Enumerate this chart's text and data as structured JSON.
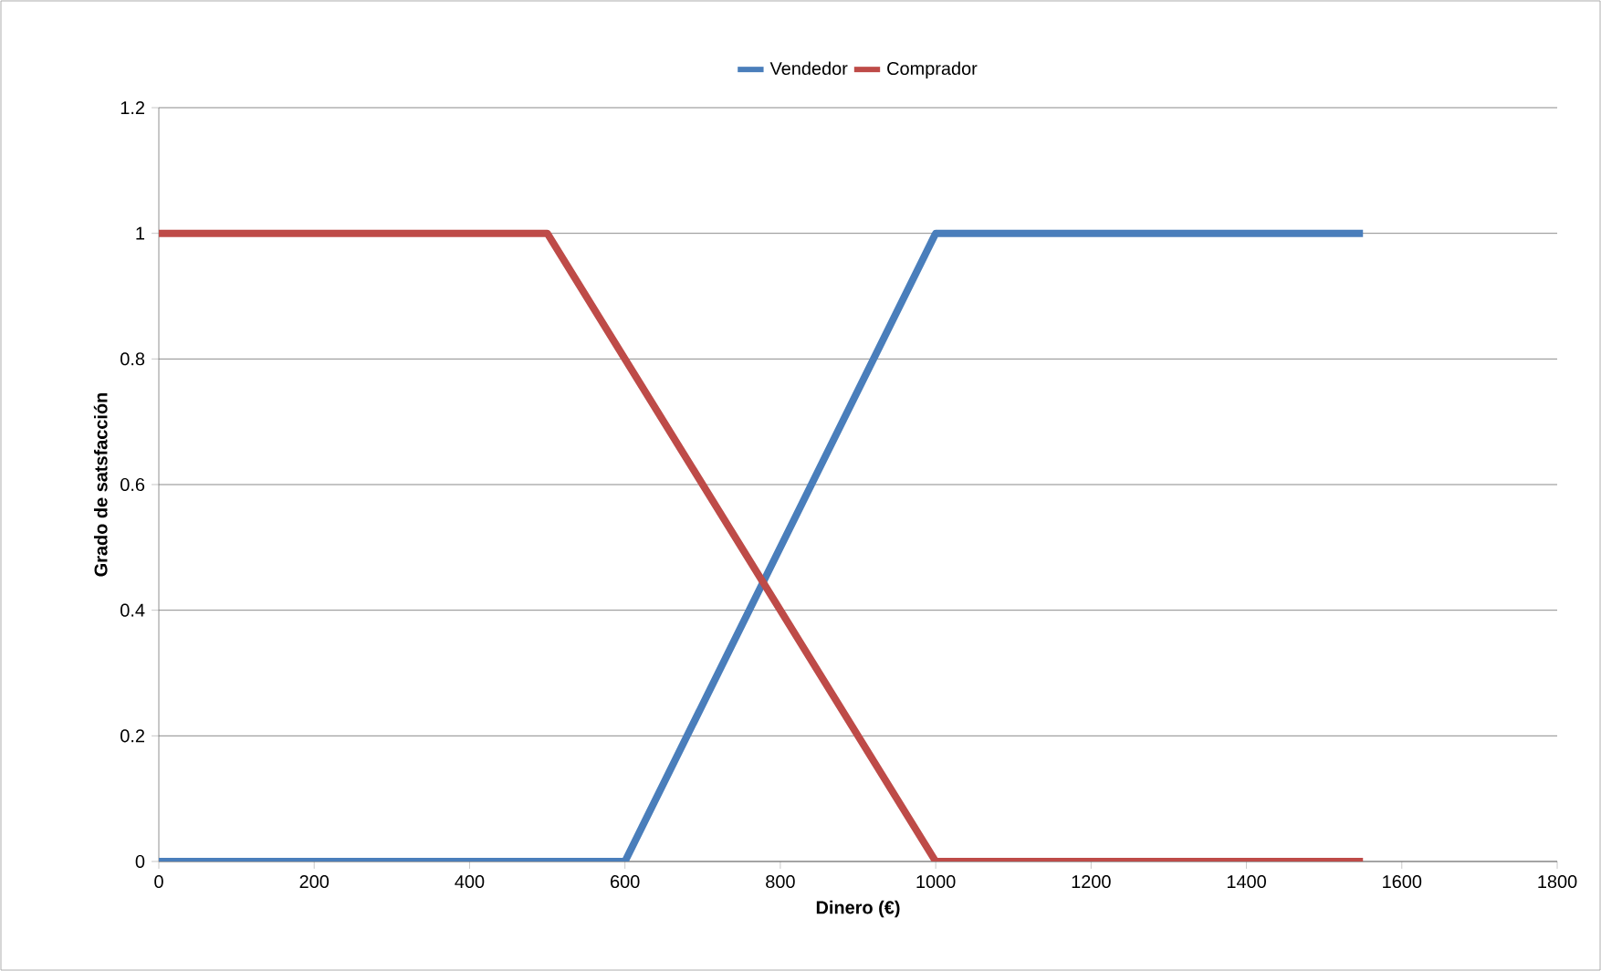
{
  "chart_data": {
    "type": "line",
    "x": [
      0,
      500,
      600,
      1000,
      1550
    ],
    "series": [
      {
        "name": "Vendedor",
        "color": "#4a7ebb",
        "values": [
          0,
          0,
          0,
          1,
          1
        ]
      },
      {
        "name": "Comprador",
        "color": "#be4b48",
        "values": [
          1,
          1,
          0.8,
          0,
          0
        ]
      }
    ],
    "xlabel": "Dinero (€)",
    "ylabel": "Grado de satsfacción",
    "xlim": [
      0,
      1800
    ],
    "xticks": [
      0,
      200,
      400,
      600,
      800,
      1000,
      1200,
      1400,
      1600,
      1800
    ],
    "ylim": [
      0,
      1.2
    ],
    "yticks": [
      0,
      0.2,
      0.4,
      0.6,
      0.8,
      1,
      1.2
    ],
    "grid": "y",
    "legend": "top",
    "marker": "none",
    "line_style": "solid"
  }
}
